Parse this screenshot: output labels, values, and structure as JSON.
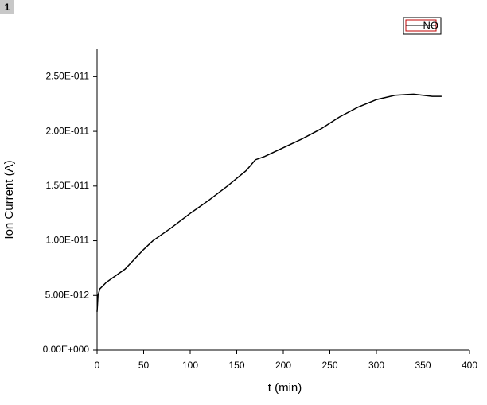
{
  "panel_label": "1",
  "chart_data": {
    "type": "line",
    "x_label": "t (min)",
    "y_label": "Ion Current (A)",
    "x": [
      0,
      1,
      3,
      10,
      20,
      30,
      40,
      50,
      60,
      80,
      100,
      120,
      140,
      160,
      170,
      180,
      200,
      220,
      240,
      260,
      280,
      300,
      320,
      340,
      360,
      370
    ],
    "series": [
      {
        "name": "NO",
        "color": "#000000",
        "values": [
          3.5e-12,
          5e-12,
          5.6e-12,
          6.2e-12,
          6.8e-12,
          7.4e-12,
          8.3e-12,
          9.2e-12,
          1e-11,
          1.12e-11,
          1.25e-11,
          1.37e-11,
          1.5e-11,
          1.64e-11,
          1.74e-11,
          1.77e-11,
          1.85e-11,
          1.93e-11,
          2.02e-11,
          2.13e-11,
          2.22e-11,
          2.29e-11,
          2.33e-11,
          2.34e-11,
          2.32e-11,
          2.32e-11
        ]
      }
    ],
    "xlim": [
      0,
      400
    ],
    "xticks": [
      0,
      50,
      100,
      150,
      200,
      250,
      300,
      350,
      400
    ],
    "ylim": [
      0,
      2.75e-11
    ],
    "yticks": [
      {
        "value": 0,
        "label": "0.00E+000"
      },
      {
        "value": 5e-12,
        "label": "5.00E-012"
      },
      {
        "value": 1e-11,
        "label": "1.00E-011"
      },
      {
        "value": 1.5e-11,
        "label": "1.50E-011"
      },
      {
        "value": 2e-11,
        "label": "2.00E-011"
      },
      {
        "value": 2.5e-11,
        "label": "2.50E-011"
      }
    ],
    "legend": "top-right",
    "grid": false
  }
}
